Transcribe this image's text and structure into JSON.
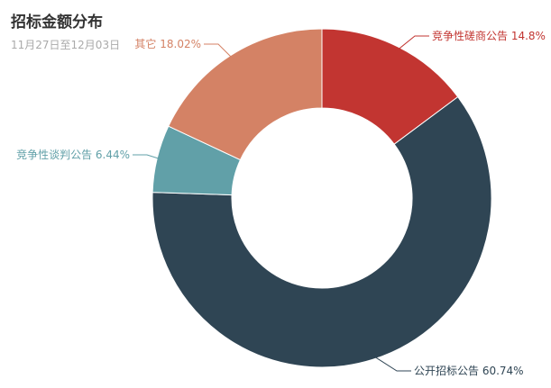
{
  "header": {
    "title": "招标金额分布",
    "subtitle": "11月27日至12月03日"
  },
  "chart_data": {
    "type": "pie",
    "donut": true,
    "title": "招标金额分布",
    "subtitle": "11月27日至12月03日",
    "slices": [
      {
        "name": "竞争性磋商公告",
        "value": 14.8,
        "label": "竞争性磋商公告 14.8%",
        "color": "#c23531"
      },
      {
        "name": "公开招标公告",
        "value": 60.74,
        "label": "公开招标公告 60.74%",
        "color": "#2f4554"
      },
      {
        "name": "竞争性谈判公告",
        "value": 6.44,
        "label": "竞争性谈判公告 6.44%",
        "color": "#61a0a8"
      },
      {
        "name": "其它",
        "value": 18.02,
        "label": "其它 18.02%",
        "color": "#d48265"
      }
    ]
  }
}
